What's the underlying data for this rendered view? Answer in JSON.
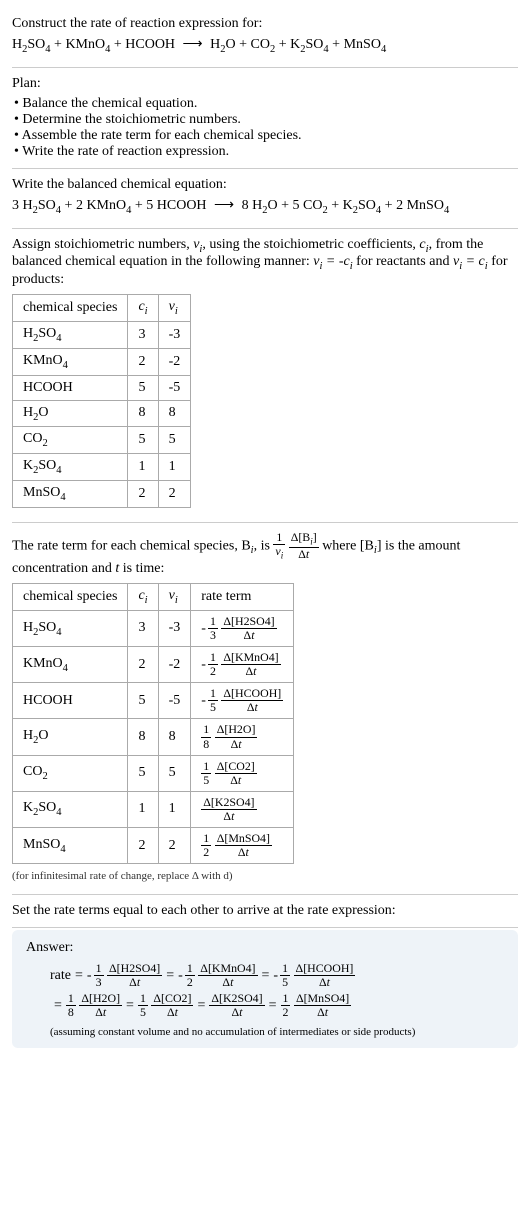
{
  "header": {
    "prompt": "Construct the rate of reaction expression for:"
  },
  "unbalanced": {
    "reactants": [
      "H₂SO₄",
      "KMnO₄",
      "HCOOH"
    ],
    "products": [
      "H₂O",
      "CO₂",
      "K₂SO₄",
      "MnSO₄"
    ]
  },
  "plan": {
    "title": "Plan:",
    "items": [
      "Balance the chemical equation.",
      "Determine the stoichiometric numbers.",
      "Assemble the rate term for each chemical species.",
      "Write the rate of reaction expression."
    ]
  },
  "balanced": {
    "title": "Write the balanced chemical equation:",
    "reactants": [
      {
        "coef": "3",
        "sp": "H₂SO₄"
      },
      {
        "coef": "2",
        "sp": "KMnO₄"
      },
      {
        "coef": "5",
        "sp": "HCOOH"
      }
    ],
    "products": [
      {
        "coef": "8",
        "sp": "H₂O"
      },
      {
        "coef": "5",
        "sp": "CO₂"
      },
      {
        "coef": "",
        "sp": "K₂SO₄"
      },
      {
        "coef": "2",
        "sp": "MnSO₄"
      }
    ]
  },
  "stoich": {
    "intro_a": "Assign stoichiometric numbers, ",
    "intro_b": ", using the stoichiometric coefficients, ",
    "intro_c": ", from the balanced chemical equation in the following manner: ",
    "intro_d": " for reactants and ",
    "intro_e": " for products:",
    "headers": [
      "chemical species",
      "cᵢ",
      "νᵢ"
    ],
    "rows": [
      {
        "sp": "H₂SO₄",
        "c": "3",
        "v": "-3"
      },
      {
        "sp": "KMnO₄",
        "c": "2",
        "v": "-2"
      },
      {
        "sp": "HCOOH",
        "c": "5",
        "v": "-5"
      },
      {
        "sp": "H₂O",
        "c": "8",
        "v": "8"
      },
      {
        "sp": "CO₂",
        "c": "5",
        "v": "5"
      },
      {
        "sp": "K₂SO₄",
        "c": "1",
        "v": "1"
      },
      {
        "sp": "MnSO₄",
        "c": "2",
        "v": "2"
      }
    ]
  },
  "rateterm": {
    "intro_a": "The rate term for each chemical species, B",
    "intro_b": ", is ",
    "intro_c": " where [B",
    "intro_d": "] is the amount concentration and ",
    "intro_e": " is time:",
    "headers": [
      "chemical species",
      "cᵢ",
      "νᵢ",
      "rate term"
    ],
    "rows": [
      {
        "sp": "H₂SO₄",
        "c": "3",
        "v": "-3",
        "neg": true,
        "fn": "1",
        "fd": "3",
        "conc": "Δ[H2SO4]"
      },
      {
        "sp": "KMnO₄",
        "c": "2",
        "v": "-2",
        "neg": true,
        "fn": "1",
        "fd": "2",
        "conc": "Δ[KMnO4]"
      },
      {
        "sp": "HCOOH",
        "c": "5",
        "v": "-5",
        "neg": true,
        "fn": "1",
        "fd": "5",
        "conc": "Δ[HCOOH]"
      },
      {
        "sp": "H₂O",
        "c": "8",
        "v": "8",
        "neg": false,
        "fn": "1",
        "fd": "8",
        "conc": "Δ[H2O]"
      },
      {
        "sp": "CO₂",
        "c": "5",
        "v": "5",
        "neg": false,
        "fn": "1",
        "fd": "5",
        "conc": "Δ[CO2]"
      },
      {
        "sp": "K₂SO₄",
        "c": "1",
        "v": "1",
        "neg": false,
        "fn": "",
        "fd": "",
        "conc": "Δ[K2SO4]"
      },
      {
        "sp": "MnSO₄",
        "c": "2",
        "v": "2",
        "neg": false,
        "fn": "1",
        "fd": "2",
        "conc": "Δ[MnSO4]"
      }
    ],
    "note": "(for infinitesimal rate of change, replace Δ with d)"
  },
  "final_intro": "Set the rate terms equal to each other to arrive at the rate expression:",
  "answer": {
    "title": "Answer:",
    "lead": "rate",
    "line1": [
      {
        "neg": true,
        "fn": "1",
        "fd": "3",
        "conc": "Δ[H2SO4]"
      },
      {
        "neg": true,
        "fn": "1",
        "fd": "2",
        "conc": "Δ[KMnO4]"
      },
      {
        "neg": true,
        "fn": "1",
        "fd": "5",
        "conc": "Δ[HCOOH]"
      }
    ],
    "line2": [
      {
        "neg": false,
        "fn": "1",
        "fd": "8",
        "conc": "Δ[H2O]"
      },
      {
        "neg": false,
        "fn": "1",
        "fd": "5",
        "conc": "Δ[CO2]"
      },
      {
        "neg": false,
        "fn": "",
        "fd": "",
        "conc": "Δ[K2SO4]"
      },
      {
        "neg": false,
        "fn": "1",
        "fd": "2",
        "conc": "Δ[MnSO4]"
      }
    ],
    "note": "(assuming constant volume and no accumulation of intermediates or side products)"
  },
  "dt": "Δt"
}
